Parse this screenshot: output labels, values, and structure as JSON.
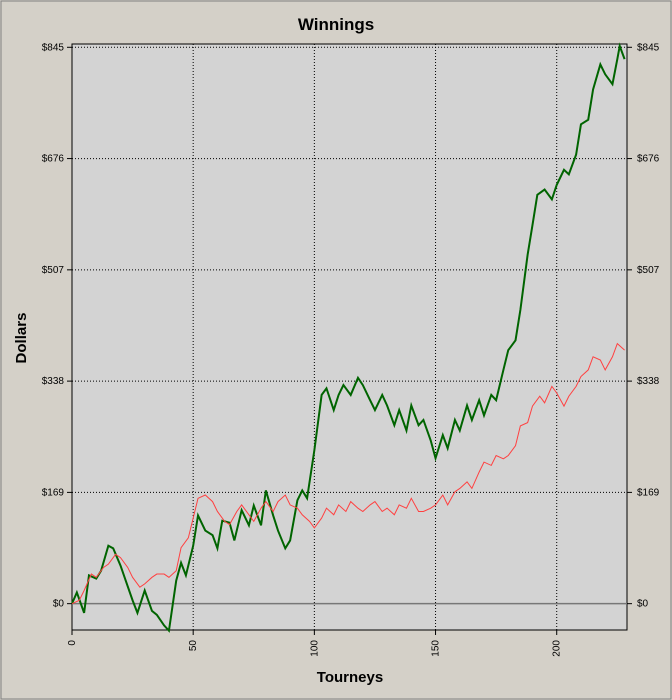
{
  "chart_data": {
    "type": "line",
    "title": "Winnings",
    "xlabel": "Tourneys",
    "ylabel": "Dollars",
    "xlim": [
      0,
      229
    ],
    "xticks": [
      0,
      50,
      100,
      150,
      200
    ],
    "ylim": [
      -40,
      850
    ],
    "yticks": [
      {
        "value": 0,
        "label": "$0"
      },
      {
        "value": 169,
        "label": "$169"
      },
      {
        "value": 338,
        "label": "$338"
      },
      {
        "value": 507,
        "label": "$507"
      },
      {
        "value": 676,
        "label": "$676"
      },
      {
        "value": 845,
        "label": "$845"
      }
    ],
    "grid": true,
    "series": [
      {
        "color": "#006400",
        "x": [
          0,
          2,
          5,
          7,
          10,
          12,
          15,
          17,
          20,
          25,
          27,
          30,
          33,
          35,
          38,
          40,
          43,
          45,
          47,
          50,
          52,
          55,
          58,
          60,
          62,
          65,
          67,
          70,
          73,
          75,
          78,
          80,
          83,
          85,
          88,
          90,
          93,
          95,
          97,
          100,
          103,
          105,
          108,
          110,
          112,
          115,
          118,
          120,
          123,
          125,
          128,
          130,
          133,
          135,
          138,
          140,
          143,
          145,
          148,
          150,
          153,
          155,
          158,
          160,
          163,
          165,
          168,
          170,
          173,
          175,
          178,
          180,
          183,
          185,
          188,
          190,
          192,
          195,
          198,
          200,
          203,
          205,
          208,
          210,
          213,
          215,
          218,
          220,
          223,
          225,
          226,
          228
        ],
        "values": [
          0,
          17,
          -14,
          43,
          38,
          50,
          88,
          84,
          58,
          5,
          -14,
          20,
          -11,
          -17,
          -33,
          -41,
          35,
          62,
          43,
          88,
          134,
          111,
          104,
          84,
          126,
          123,
          96,
          142,
          119,
          149,
          119,
          172,
          134,
          111,
          84,
          96,
          157,
          172,
          160,
          233,
          317,
          327,
          294,
          317,
          332,
          317,
          343,
          332,
          309,
          294,
          317,
          301,
          271,
          294,
          263,
          301,
          271,
          279,
          248,
          221,
          256,
          236,
          279,
          263,
          301,
          279,
          309,
          286,
          317,
          309,
          355,
          385,
          400,
          446,
          530,
          575,
          621,
          629,
          614,
          636,
          659,
          652,
          682,
          728,
          735,
          781,
          819,
          804,
          789,
          827,
          847,
          827
        ]
      },
      {
        "color": "#ff4040",
        "x": [
          0,
          3,
          5,
          8,
          10,
          13,
          15,
          18,
          20,
          23,
          25,
          28,
          30,
          33,
          35,
          38,
          40,
          43,
          45,
          48,
          50,
          52,
          55,
          58,
          60,
          63,
          65,
          68,
          70,
          73,
          75,
          78,
          80,
          83,
          85,
          88,
          90,
          93,
          95,
          98,
          100,
          103,
          105,
          108,
          110,
          113,
          115,
          118,
          120,
          123,
          125,
          128,
          130,
          133,
          135,
          138,
          140,
          143,
          145,
          148,
          150,
          153,
          155,
          158,
          160,
          163,
          165,
          168,
          170,
          173,
          175,
          178,
          180,
          183,
          185,
          188,
          190,
          193,
          195,
          198,
          200,
          203,
          205,
          208,
          210,
          213,
          215,
          218,
          220,
          223,
          225,
          228
        ],
        "values": [
          0,
          5,
          20,
          45,
          40,
          55,
          60,
          75,
          70,
          55,
          40,
          25,
          30,
          40,
          45,
          45,
          40,
          50,
          85,
          100,
          130,
          160,
          165,
          155,
          140,
          125,
          120,
          140,
          150,
          135,
          125,
          145,
          155,
          140,
          155,
          165,
          150,
          145,
          135,
          125,
          115,
          130,
          145,
          135,
          150,
          140,
          155,
          145,
          140,
          150,
          155,
          140,
          145,
          135,
          150,
          145,
          160,
          140,
          140,
          145,
          150,
          165,
          150,
          170,
          175,
          185,
          175,
          200,
          215,
          210,
          225,
          220,
          225,
          240,
          270,
          275,
          300,
          315,
          305,
          330,
          320,
          300,
          315,
          330,
          345,
          355,
          375,
          370,
          355,
          375,
          395,
          385
        ]
      }
    ]
  }
}
